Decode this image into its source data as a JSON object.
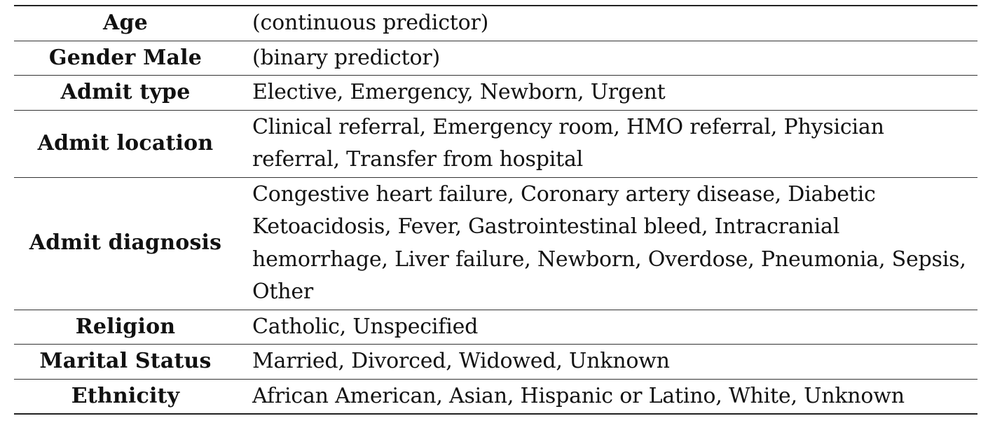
{
  "table": {
    "rows": [
      {
        "label": "Age",
        "value": "(continuous predictor)"
      },
      {
        "label": "Gender Male",
        "value": "(binary predictor)"
      },
      {
        "label": "Admit type",
        "value": "Elective, Emergency, Newborn, Urgent"
      },
      {
        "label": "Admit location",
        "value": "Clinical referral, Emergency room, HMO referral, Physician referral, Transfer from hospital"
      },
      {
        "label": "Admit diagnosis",
        "value": "Congestive heart failure, Coronary artery disease, Diabetic Ketoacidosis, Fever, Gastrointestinal bleed, Intracranial hemorrhage, Liver failure, Newborn, Overdose, Pneumonia, Sepsis, Other"
      },
      {
        "label": "Religion",
        "value": "Catholic, Unspecified"
      },
      {
        "label": "Marital Status",
        "value": "Married, Divorced, Widowed, Unknown"
      },
      {
        "label": "Ethnicity",
        "value": "African American, Asian, Hispanic or Latino, White, Unknown"
      }
    ]
  }
}
